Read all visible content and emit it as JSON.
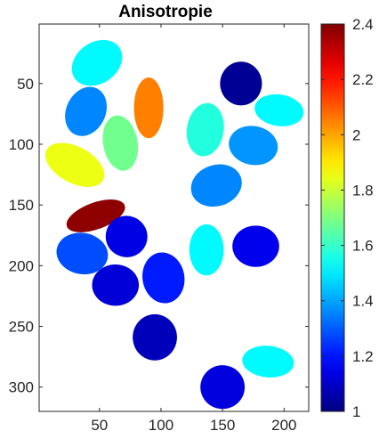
{
  "chart_data": {
    "type": "heatmap",
    "title": "Anisotropie",
    "xlim": [
      1,
      220
    ],
    "ylim": [
      1,
      320
    ],
    "y_reversed": true,
    "xticks": [
      50,
      100,
      150,
      200
    ],
    "yticks": [
      50,
      100,
      150,
      200,
      250,
      300
    ],
    "colormap": "jet",
    "colorbar": {
      "range": [
        1,
        2.4
      ],
      "ticks": [
        1,
        1.2,
        1.4,
        1.6,
        1.8,
        2,
        2.2,
        2.4
      ],
      "tick_labels": [
        "1",
        "1.2",
        "1.4",
        "1.6",
        "1.8",
        "2",
        "2.2",
        "2.4"
      ],
      "placement": "right"
    },
    "background_value": "white",
    "cells": [
      {
        "x": 48,
        "y": 33,
        "rx": 22,
        "ry": 17,
        "angle": -35,
        "value": 1.52
      },
      {
        "x": 165,
        "y": 50,
        "rx": 17,
        "ry": 18,
        "angle": 0,
        "value": 1.03
      },
      {
        "x": 39,
        "y": 73,
        "rx": 16,
        "ry": 21,
        "angle": 25,
        "value": 1.36
      },
      {
        "x": 90,
        "y": 70,
        "rx": 12,
        "ry": 25,
        "angle": 0,
        "value": 2.05
      },
      {
        "x": 196,
        "y": 72,
        "rx": 20,
        "ry": 13,
        "angle": 8,
        "value": 1.52
      },
      {
        "x": 136,
        "y": 88,
        "rx": 15,
        "ry": 22,
        "angle": 8,
        "value": 1.57
      },
      {
        "x": 67,
        "y": 99,
        "rx": 14,
        "ry": 23,
        "angle": -10,
        "value": 1.68
      },
      {
        "x": 175,
        "y": 101,
        "rx": 20,
        "ry": 16,
        "angle": 10,
        "value": 1.38
      },
      {
        "x": 30,
        "y": 117,
        "rx": 26,
        "ry": 15,
        "angle": 28,
        "value": 1.85
      },
      {
        "x": 145,
        "y": 134,
        "rx": 21,
        "ry": 17,
        "angle": -18,
        "value": 1.36
      },
      {
        "x": 47,
        "y": 159,
        "rx": 25,
        "ry": 11,
        "angle": -20,
        "value": 2.38
      },
      {
        "x": 72,
        "y": 176,
        "rx": 17,
        "ry": 17,
        "angle": 20,
        "value": 1.14
      },
      {
        "x": 36,
        "y": 190,
        "rx": 21,
        "ry": 17,
        "angle": 10,
        "value": 1.28
      },
      {
        "x": 137,
        "y": 187,
        "rx": 14,
        "ry": 21,
        "angle": 0,
        "value": 1.52
      },
      {
        "x": 177,
        "y": 184,
        "rx": 19,
        "ry": 17,
        "angle": 0,
        "value": 1.15
      },
      {
        "x": 63,
        "y": 216,
        "rx": 19,
        "ry": 17,
        "angle": 0,
        "value": 1.12
      },
      {
        "x": 102,
        "y": 210,
        "rx": 17,
        "ry": 21,
        "angle": -10,
        "value": 1.21
      },
      {
        "x": 95,
        "y": 259,
        "rx": 18,
        "ry": 19,
        "angle": 0,
        "value": 1.08
      },
      {
        "x": 187,
        "y": 279,
        "rx": 21,
        "ry": 13,
        "angle": 5,
        "value": 1.52
      },
      {
        "x": 150,
        "y": 300,
        "rx": 18,
        "ry": 18,
        "angle": 0,
        "value": 1.13
      }
    ]
  }
}
